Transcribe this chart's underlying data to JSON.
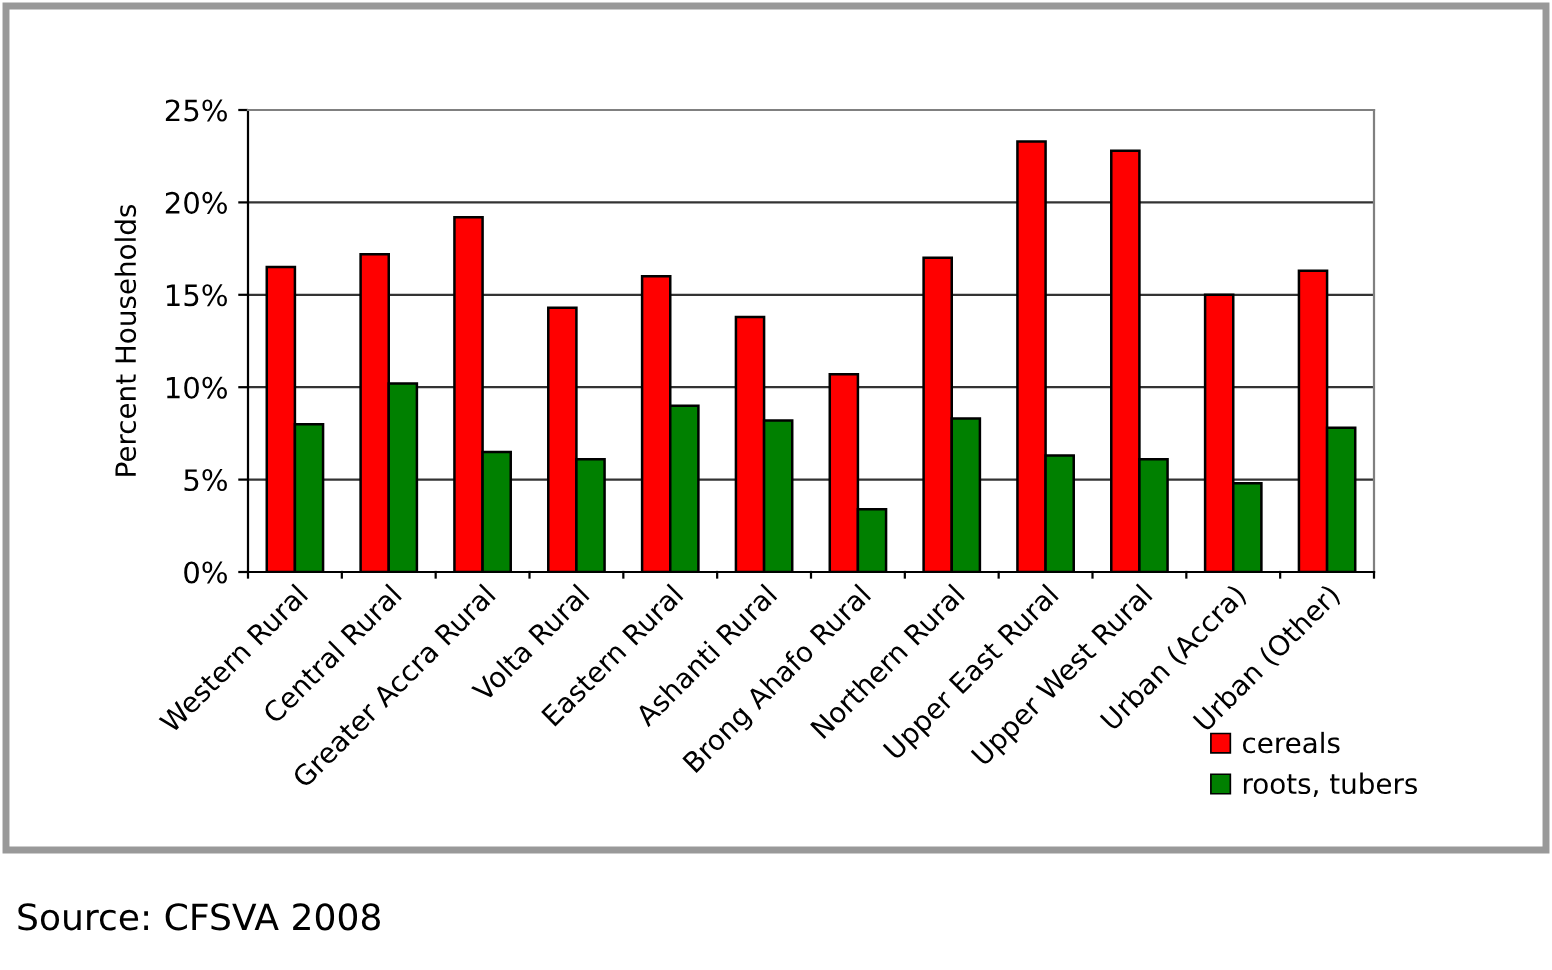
{
  "chart_data": {
    "type": "bar",
    "ylabel": "Percent Households",
    "categories": [
      "Western Rural",
      "Central Rural",
      "Greater Accra Rural",
      "Volta Rural",
      "Eastern Rural",
      "Ashanti Rural",
      "Brong Ahafo Rural",
      "Northern Rural",
      "Upper East Rural",
      "Upper West Rural",
      "Urban (Accra)",
      "Urban (Other)"
    ],
    "series": [
      {
        "name": "cereals",
        "color": "#ff0000",
        "values": [
          16.5,
          17.2,
          19.2,
          14.3,
          16.0,
          13.8,
          10.7,
          17.0,
          23.3,
          22.8,
          15.0,
          16.3
        ]
      },
      {
        "name": "roots, tubers",
        "color": "#008000",
        "values": [
          8.0,
          10.2,
          6.5,
          6.1,
          9.0,
          8.2,
          3.4,
          8.3,
          6.3,
          6.1,
          4.8,
          7.8
        ]
      }
    ],
    "ylim": [
      0,
      25
    ],
    "yticks": [
      {
        "value": 0,
        "label": "0%"
      },
      {
        "value": 5,
        "label": "5%"
      },
      {
        "value": 10,
        "label": "10%"
      },
      {
        "value": 15,
        "label": "15%"
      },
      {
        "value": 20,
        "label": "20%"
      },
      {
        "value": 25,
        "label": "25%"
      }
    ],
    "grid": "y",
    "legend": "bottom right",
    "annotations": [
      "Source: CFSVA 2008"
    ]
  }
}
